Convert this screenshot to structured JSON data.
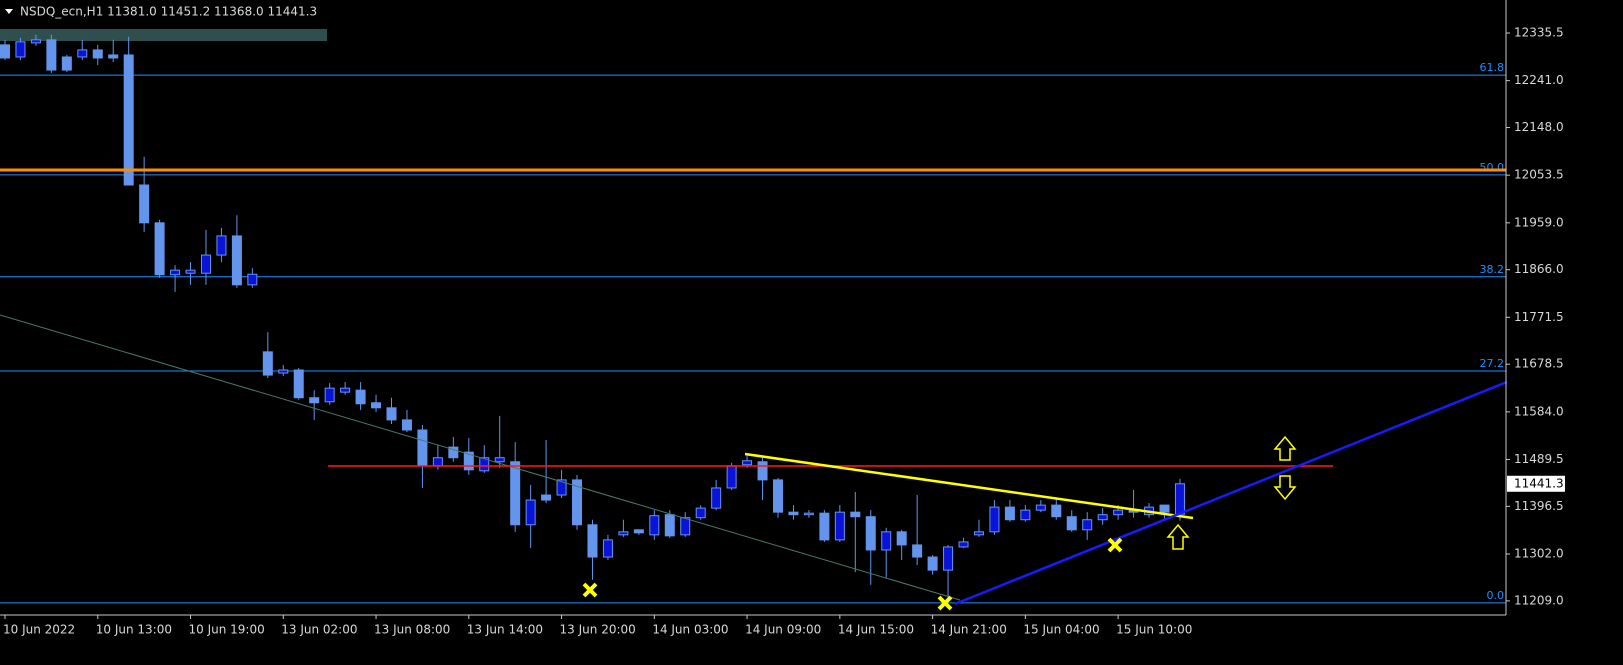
{
  "chart_data": {
    "type": "candlestick",
    "title": "NSDQ_ecn,H1  11381.0 11451.2 11368.0 11441.3",
    "categories": [
      "10 Jun 2022",
      null,
      null,
      null,
      null,
      null,
      "10 Jun 13:00",
      null,
      null,
      null,
      null,
      null,
      "10 Jun 19:00",
      null,
      null,
      null,
      null,
      null,
      "13 Jun 02:00",
      null,
      null,
      null,
      null,
      null,
      "13 Jun 08:00",
      null,
      null,
      null,
      null,
      null,
      "13 Jun 14:00",
      null,
      null,
      null,
      null,
      null,
      "13 Jun 20:00",
      null,
      null,
      null,
      null,
      null,
      "14 Jun 03:00",
      null,
      null,
      null,
      null,
      null,
      "14 Jun 09:00",
      null,
      null,
      null,
      null,
      null,
      "14 Jun 15:00",
      null,
      null,
      null,
      null,
      null,
      "14 Jun 21:00",
      null,
      null,
      null,
      null,
      null,
      "15 Jun 04:00",
      null,
      null,
      null,
      null,
      null,
      "15 Jun 10:00",
      null,
      null,
      null,
      null
    ],
    "open": [
      12312,
      12288,
      12316,
      12322,
      12288,
      12288,
      12302,
      12292,
      12292,
      12034,
      11959,
      11856,
      11859,
      11859,
      11895,
      11933,
      11836,
      11703,
      11661,
      11667,
      11612,
      11604,
      11623,
      11627,
      11602,
      11592,
      11568,
      11548,
      11477,
      11514,
      11504,
      11467,
      11485,
      11485,
      11360,
      11419,
      11419,
      11449,
      11360,
      11296,
      11340,
      11350,
      11340,
      11380,
      11340,
      11374,
      11393,
      11433,
      11479,
      11485,
      11449,
      11385,
      11380,
      11383,
      11330,
      11385,
      11376,
      11310,
      11346,
      11320,
      11296,
      11270,
      11316,
      11340,
      11346,
      11395,
      11370,
      11389,
      11399,
      11376,
      11350,
      11370,
      11380,
      11389,
      11380,
      11399,
      11381.0
    ],
    "high": [
      12322,
      12326,
      12332,
      12332,
      12292,
      12322,
      12312,
      12322,
      12328,
      12090,
      11965,
      11875,
      11881,
      11945,
      11949,
      11974,
      11869,
      11742,
      11677,
      11671,
      11627,
      11641,
      11643,
      11643,
      11618,
      11612,
      11588,
      11558,
      11518,
      11534,
      11532,
      11518,
      11576,
      11524,
      11439,
      11528,
      11469,
      11459,
      11370,
      11340,
      11370,
      11350,
      11389,
      11389,
      11385,
      11399,
      11449,
      11483,
      11499,
      11493,
      11453,
      11399,
      11389,
      11389,
      11399,
      11425,
      11389,
      11354,
      11350,
      11419,
      11300,
      11320,
      11334,
      11370,
      11409,
      11409,
      11399,
      11409,
      11413,
      11389,
      11385,
      11393,
      11399,
      11429,
      11403,
      11399,
      11451.2
    ],
    "low": [
      12282,
      12282,
      12310,
      12256,
      12258,
      12282,
      12272,
      12278,
      12034,
      11941,
      11850,
      11822,
      11836,
      11836,
      11881,
      11830,
      11830,
      11651,
      11655,
      11608,
      11568,
      11598,
      11618,
      11588,
      11584,
      11560,
      11544,
      11433,
      11469,
      11485,
      11459,
      11463,
      11473,
      11346,
      11314,
      11403,
      11413,
      11350,
      11251,
      11290,
      11336,
      11340,
      11330,
      11334,
      11336,
      11370,
      11389,
      11429,
      11473,
      11409,
      11374,
      11370,
      11374,
      11326,
      11326,
      11266,
      11241,
      11255,
      11290,
      11280,
      11261,
      11211,
      11314,
      11336,
      11340,
      11366,
      11366,
      11385,
      11370,
      11346,
      11330,
      11360,
      11370,
      11374,
      11374,
      11370,
      11368.0
    ],
    "close": [
      12286,
      12318,
      12322,
      12262,
      12262,
      12302,
      12286,
      12286,
      12034,
      11959,
      11856,
      11865,
      11865,
      11895,
      11933,
      11836,
      11857,
      11657,
      11667,
      11612,
      11602,
      11631,
      11631,
      11600,
      11592,
      11568,
      11548,
      11477,
      11493,
      11493,
      11469,
      11493,
      11493,
      11360,
      11409,
      11409,
      11449,
      11360,
      11296,
      11330,
      11346,
      11344,
      11378,
      11338,
      11374,
      11393,
      11433,
      11477,
      11487,
      11449,
      11385,
      11380,
      11383,
      11330,
      11385,
      11376,
      11310,
      11346,
      11320,
      11296,
      11270,
      11316,
      11326,
      11346,
      11395,
      11370,
      11389,
      11399,
      11376,
      11350,
      11370,
      11380,
      11389,
      11385,
      11395,
      11385,
      11441.3
    ],
    "bull_color": "#0a14d8",
    "bear_color": "#6495ed",
    "ylim": [
      11181,
      12401
    ],
    "yticks": [
      12335.5,
      {
        "value": 12241,
        "label": "12241.0"
      },
      {
        "value": 12148,
        "label": "12148.0"
      },
      12053.5,
      {
        "value": 11959,
        "label": "11959.0"
      },
      {
        "value": 11866,
        "label": "11866.0"
      },
      11771.5,
      11678.5,
      {
        "value": 11584,
        "label": "11584.0"
      },
      11489.5,
      11396.5,
      {
        "value": 11302,
        "label": "11302.0"
      },
      {
        "value": 11209,
        "label": "11209.0"
      }
    ],
    "fib_levels": [
      {
        "name": "61.8",
        "price": 12252
      },
      {
        "name": "50.0",
        "price": 12054
      },
      {
        "name": "38.2",
        "price": 11852
      },
      {
        "name": "27.2",
        "price": 11665
      },
      {
        "name": "0.0",
        "price": 11205
      }
    ],
    "fib_color": "#1e90ff",
    "grid": false
  }
}
